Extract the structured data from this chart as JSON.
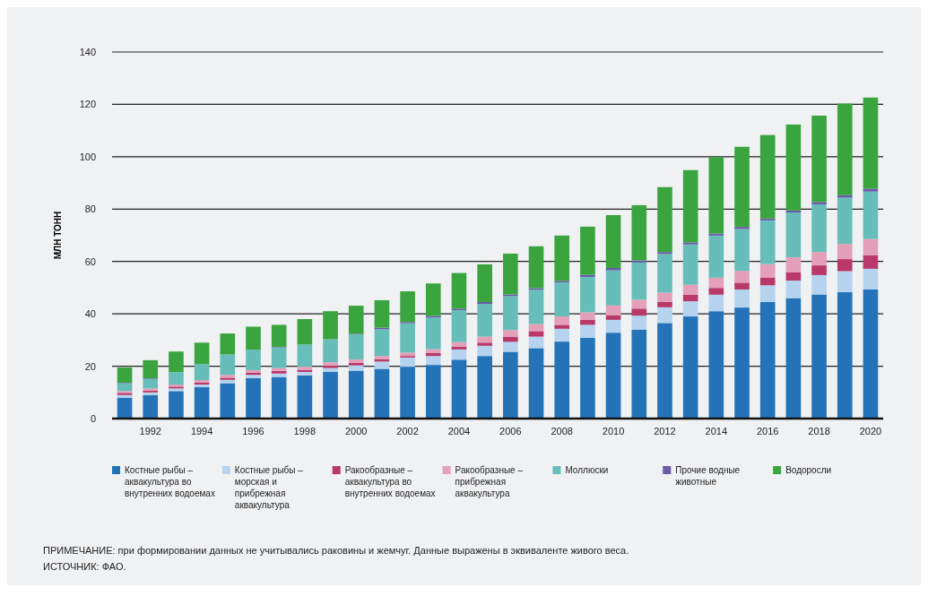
{
  "chart_data": {
    "type": "bar",
    "stacked": true,
    "ylabel": "МЛН ТОНН",
    "categories": [
      null,
      "1992",
      null,
      "1994",
      null,
      "1996",
      null,
      "1998",
      null,
      "2000",
      null,
      "2002",
      null,
      "2004",
      null,
      "2006",
      null,
      "2008",
      null,
      "2010",
      null,
      "2012",
      null,
      "2014",
      null,
      "2016",
      null,
      "2018",
      null,
      "2020"
    ],
    "ylim": [
      0,
      140
    ],
    "yticks": [
      0,
      20,
      40,
      60,
      80,
      100,
      120,
      140
    ],
    "grid": "y",
    "legend": "bottom",
    "series": [
      {
        "name": "Костные рыбы – аквакультура во внутренних водоемах",
        "color": "#2473b9",
        "values": [
          8,
          9,
          10.5,
          12,
          13.5,
          15.5,
          15.9,
          16.5,
          17.8,
          18.3,
          19,
          19.8,
          20.5,
          22.5,
          23.9,
          25.5,
          26.9,
          29.4,
          30.8,
          32.8,
          34,
          36.5,
          39,
          41,
          42.4,
          44.5,
          46,
          47.4,
          48.3,
          49.3
        ]
      },
      {
        "name": "Костные рыбы – морская и прибрежная аквакультура",
        "color": "#b5d3ee",
        "values": [
          1,
          1,
          1,
          1,
          1.3,
          1.2,
          1.3,
          1.3,
          1.5,
          2,
          2.8,
          3.5,
          3.4,
          3.9,
          3.9,
          3.8,
          4.4,
          4.9,
          5,
          4.9,
          5.3,
          6,
          5.8,
          6.3,
          6.9,
          6.4,
          6.7,
          7.4,
          8,
          7.9
        ]
      },
      {
        "name": "Ракообразные – аквакультура во внутренних водоемах",
        "color": "#b8386a",
        "values": [
          0.8,
          0.7,
          0.7,
          0.8,
          0.8,
          0.8,
          1,
          0.8,
          1,
          1,
          0.9,
          0.6,
          1.1,
          1.1,
          1.2,
          2,
          2.1,
          1.5,
          1.9,
          1.8,
          2.7,
          2,
          2.5,
          2.6,
          2.6,
          3,
          3.2,
          3.7,
          4.6,
          5.1
        ]
      },
      {
        "name": "Ракообразные – прибрежная аквакультура",
        "color": "#e3a0b8",
        "values": [
          0.7,
          0.8,
          0.8,
          0.9,
          1.1,
          1,
          1.1,
          1.2,
          1.2,
          1.3,
          1.2,
          1.3,
          1.5,
          1.7,
          2.3,
          2.5,
          2.7,
          3.2,
          2.9,
          3.7,
          3.4,
          3.6,
          3.8,
          3.9,
          4.5,
          5.1,
          5.7,
          5.1,
          5.8,
          6.3
        ]
      },
      {
        "name": "Моллюски",
        "color": "#66bdb9",
        "values": [
          3,
          3.7,
          4.7,
          6.1,
          7.8,
          7.8,
          7.9,
          8.5,
          8.8,
          9.6,
          10.2,
          11.2,
          12.1,
          12.2,
          12.5,
          13,
          13.1,
          13,
          13.5,
          13.4,
          14.2,
          14.8,
          15.4,
          16.1,
          16,
          16.7,
          17.1,
          18.2,
          17.7,
          18.1
        ]
      },
      {
        "name": "Прочие водные животные",
        "color": "#6a5aa8",
        "values": [
          0.2,
          0.2,
          null,
          null,
          null,
          null,
          0.2,
          null,
          null,
          0.2,
          0.6,
          0.5,
          0.6,
          0.6,
          0.7,
          0.6,
          0.6,
          0.6,
          0.8,
          0.9,
          0.8,
          0.7,
          0.8,
          0.8,
          0.8,
          0.7,
          0.8,
          0.9,
          0.9,
          1.1
        ]
      },
      {
        "name": "Водоросли",
        "color": "#3aa53e",
        "values": [
          5.8,
          6.9,
          7.9,
          8.2,
          8,
          8.8,
          8.4,
          9.7,
          10.7,
          10.7,
          10.5,
          11.7,
          12.4,
          13.6,
          14.4,
          15.6,
          16,
          17.3,
          18.4,
          20.2,
          21.1,
          24.8,
          27.6,
          29.1,
          30.6,
          31.9,
          32.8,
          33,
          35,
          34.8
        ]
      }
    ],
    "annotations": [
      "ПРИМЕЧАНИЕ: при формировании данных не учитывались раковины и жемчуг. Данные выражены в эквиваленте живого веса.",
      "ИСТОЧНИК: ФАО."
    ]
  }
}
